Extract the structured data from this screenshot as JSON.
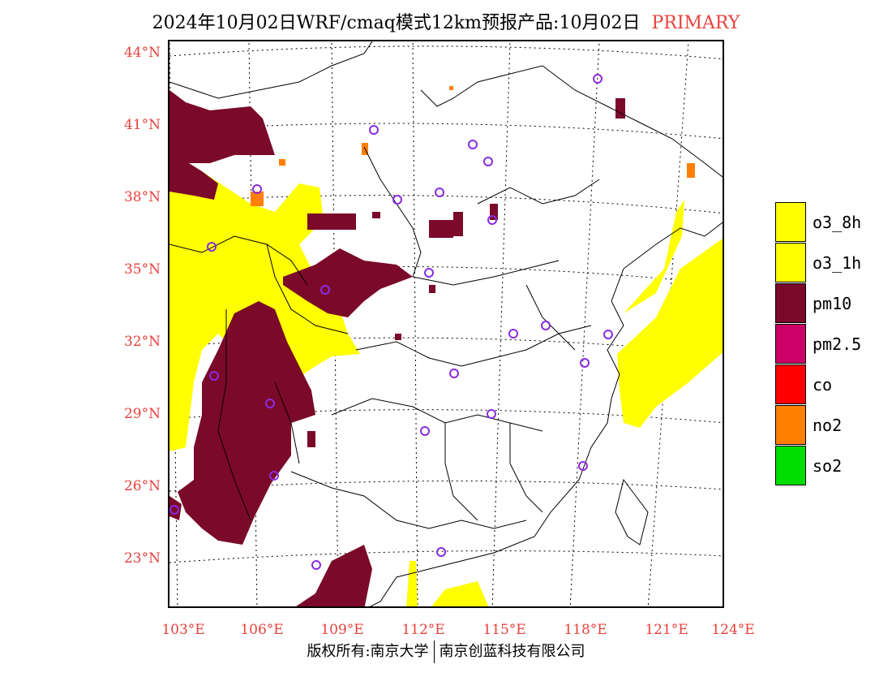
{
  "title": {
    "main": "2024年10月02日WRF/cmaq模式12km预报产品:10月02日",
    "tag": "PRIMARY"
  },
  "colors": {
    "axis_label": "#e8413c",
    "tag": "#e8413c",
    "o3_8h": "#ffff00",
    "o3_1h": "#ffff00",
    "pm10": "#7b0a2a",
    "pm25": "#cc0066",
    "co": "#ff0000",
    "no2": "#ff7f00",
    "so2": "#00dd00",
    "city_marker": "#8a2be2"
  },
  "lat_labels": [
    "44°N",
    "41°N",
    "38°N",
    "35°N",
    "32°N",
    "29°N",
    "26°N",
    "23°N"
  ],
  "lon_labels": [
    "103°E",
    "106°E",
    "109°E",
    "112°E",
    "115°E",
    "118°E",
    "121°E",
    "124°E"
  ],
  "legend": [
    {
      "label": "o3_8h",
      "color_key": "o3_8h"
    },
    {
      "label": "o3_1h",
      "color_key": "o3_1h"
    },
    {
      "label": "pm10",
      "color_key": "pm10"
    },
    {
      "label": "pm2.5",
      "color_key": "pm25"
    },
    {
      "label": "co",
      "color_key": "co"
    },
    {
      "label": "no2",
      "color_key": "no2"
    },
    {
      "label": "so2",
      "color_key": "so2"
    }
  ],
  "footer": {
    "left": "版权所有:南京大学",
    "right": "南京创蓝科技有限公司"
  }
}
